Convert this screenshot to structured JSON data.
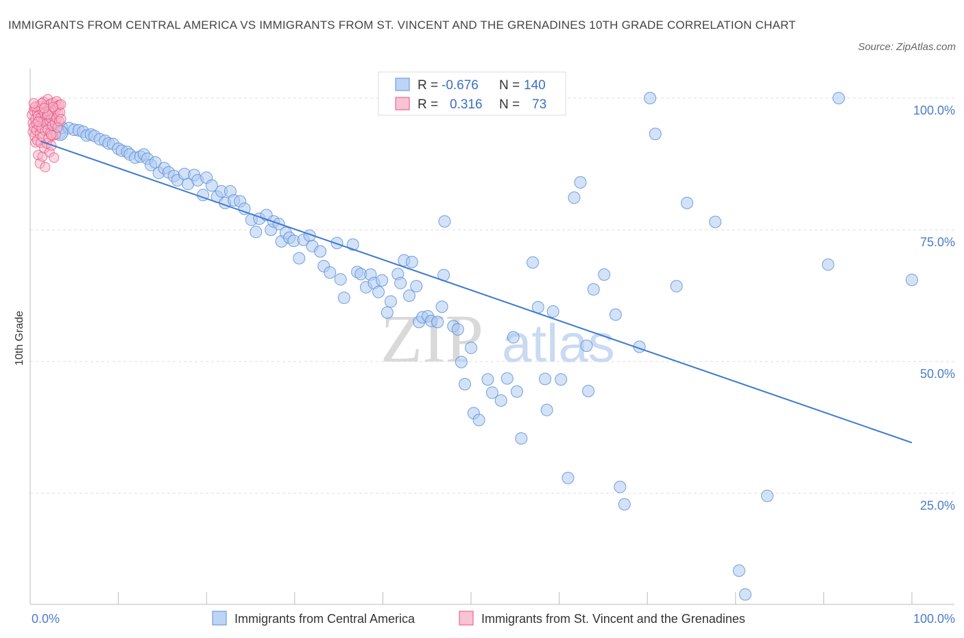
{
  "title": "IMMIGRANTS FROM CENTRAL AMERICA VS IMMIGRANTS FROM ST. VINCENT AND THE GRENADINES 10TH GRADE CORRELATION CHART",
  "source": "Source: ZipAtlas.com",
  "watermark": {
    "zip": "ZIP",
    "atlas": "atlas"
  },
  "colors": {
    "blue": "#5b8fdb",
    "blue_fill": "#aecbf1",
    "pink": "#e8507f",
    "pink_fill": "#f5b4c7",
    "trend_blue": "#3a78d4",
    "grid": "#dddddd"
  },
  "legend_box": {
    "rows": [
      {
        "r_label": "R =",
        "r_value": "-0.676",
        "n_label": "N =",
        "n_value": "140"
      },
      {
        "r_label": "R =",
        "r_value": "0.316",
        "n_label": "N =",
        "n_value": "73"
      }
    ]
  },
  "bottom_legend": [
    {
      "label": "Immigrants from Central America"
    },
    {
      "label": "Immigrants from St. Vincent and the Grenadines"
    }
  ],
  "chart_data": {
    "type": "scatter",
    "title": "IMMIGRANTS FROM CENTRAL AMERICA VS IMMIGRANTS FROM ST. VINCENT AND THE GRENADINES 10TH GRADE CORRELATION CHART",
    "xlabel": "",
    "ylabel": "10th Grade",
    "xlim": [
      0,
      100
    ],
    "ylim": [
      0,
      102
    ],
    "x_tick_labels": [
      {
        "value": 0,
        "label": "0.0%"
      },
      {
        "value": 100,
        "label": "100.0%"
      }
    ],
    "y_tick_labels": [
      {
        "value": 100,
        "label": "100.0%"
      },
      {
        "value": 75,
        "label": "75.0%"
      },
      {
        "value": 50,
        "label": "50.0%"
      },
      {
        "value": 25,
        "label": "25.0%"
      }
    ],
    "series": [
      {
        "name": "Immigrants from Central America",
        "r": -0.676,
        "n": 140,
        "trend": {
          "x": [
            1.2,
            100
          ],
          "y": [
            91.8,
            34.6
          ]
        },
        "points": [
          [
            1.4,
            96.2
          ],
          [
            1.7,
            95.8
          ],
          [
            2.0,
            95.6
          ],
          [
            2.3,
            95.1
          ],
          [
            3.4,
            93.4
          ],
          [
            3.6,
            94.4
          ],
          [
            4.4,
            94.3
          ],
          [
            5.0,
            94.0
          ],
          [
            5.5,
            93.9
          ],
          [
            6.0,
            93.6
          ],
          [
            6.4,
            92.9
          ],
          [
            6.9,
            93.1
          ],
          [
            7.3,
            92.8
          ],
          [
            7.9,
            92.2
          ],
          [
            8.5,
            91.9
          ],
          [
            8.9,
            91.4
          ],
          [
            9.4,
            91.3
          ],
          [
            10.0,
            90.4
          ],
          [
            10.4,
            90.0
          ],
          [
            11.0,
            89.8
          ],
          [
            11.3,
            89.3
          ],
          [
            11.9,
            88.7
          ],
          [
            12.5,
            88.9
          ],
          [
            12.9,
            89.3
          ],
          [
            13.3,
            88.5
          ],
          [
            13.7,
            87.3
          ],
          [
            14.2,
            87.8
          ],
          [
            14.6,
            85.8
          ],
          [
            15.2,
            86.7
          ],
          [
            15.7,
            85.9
          ],
          [
            16.3,
            85.2
          ],
          [
            16.7,
            84.4
          ],
          [
            17.5,
            85.6
          ],
          [
            17.9,
            83.7
          ],
          [
            18.6,
            85.4
          ],
          [
            19.0,
            84.4
          ],
          [
            19.6,
            81.6
          ],
          [
            20.0,
            84.9
          ],
          [
            20.6,
            83.4
          ],
          [
            21.2,
            81.3
          ],
          [
            21.7,
            82.3
          ],
          [
            22.1,
            80.1
          ],
          [
            22.7,
            82.3
          ],
          [
            23.1,
            80.6
          ],
          [
            23.8,
            80.4
          ],
          [
            24.3,
            79.0
          ],
          [
            25.1,
            76.9
          ],
          [
            25.6,
            74.6
          ],
          [
            26.0,
            77.1
          ],
          [
            26.8,
            77.8
          ],
          [
            27.3,
            75.0
          ],
          [
            27.6,
            76.6
          ],
          [
            28.2,
            76.1
          ],
          [
            28.5,
            72.8
          ],
          [
            29.0,
            74.4
          ],
          [
            29.4,
            73.5
          ],
          [
            29.9,
            72.9
          ],
          [
            30.5,
            69.6
          ],
          [
            31.0,
            73.1
          ],
          [
            31.7,
            73.9
          ],
          [
            32.0,
            71.9
          ],
          [
            32.9,
            70.9
          ],
          [
            33.3,
            68.1
          ],
          [
            34.0,
            66.9
          ],
          [
            34.8,
            72.5
          ],
          [
            35.2,
            65.6
          ],
          [
            35.6,
            62.1
          ],
          [
            36.6,
            72.2
          ],
          [
            37.1,
            67.0
          ],
          [
            37.5,
            66.6
          ],
          [
            38.1,
            64.1
          ],
          [
            38.6,
            66.5
          ],
          [
            39.0,
            64.9
          ],
          [
            39.5,
            63.2
          ],
          [
            39.9,
            65.4
          ],
          [
            40.5,
            59.3
          ],
          [
            40.9,
            61.4
          ],
          [
            41.7,
            66.6
          ],
          [
            42.0,
            64.9
          ],
          [
            42.4,
            69.2
          ],
          [
            43.0,
            62.5
          ],
          [
            43.3,
            68.9
          ],
          [
            43.8,
            64.3
          ],
          [
            44.1,
            57.5
          ],
          [
            44.5,
            58.4
          ],
          [
            45.1,
            58.6
          ],
          [
            45.5,
            57.7
          ],
          [
            46.2,
            57.5
          ],
          [
            46.7,
            60.4
          ],
          [
            46.9,
            66.4
          ],
          [
            47.0,
            76.6
          ],
          [
            48.0,
            56.7
          ],
          [
            48.5,
            56.1
          ],
          [
            48.9,
            49.9
          ],
          [
            49.3,
            45.7
          ],
          [
            50.0,
            52.6
          ],
          [
            50.3,
            40.2
          ],
          [
            50.9,
            38.9
          ],
          [
            51.9,
            46.6
          ],
          [
            52.4,
            44.1
          ],
          [
            53.4,
            42.6
          ],
          [
            54.1,
            46.8
          ],
          [
            54.8,
            54.6
          ],
          [
            55.2,
            44.3
          ],
          [
            55.7,
            35.4
          ],
          [
            57.0,
            68.8
          ],
          [
            57.6,
            60.3
          ],
          [
            58.4,
            46.7
          ],
          [
            58.6,
            40.8
          ],
          [
            59.3,
            59.5
          ],
          [
            60.2,
            46.6
          ],
          [
            61.0,
            27.9
          ],
          [
            61.7,
            81.1
          ],
          [
            62.4,
            84.0
          ],
          [
            63.1,
            53.0
          ],
          [
            63.3,
            44.4
          ],
          [
            63.9,
            63.7
          ],
          [
            65.1,
            66.5
          ],
          [
            66.4,
            58.9
          ],
          [
            66.9,
            26.2
          ],
          [
            67.4,
            22.9
          ],
          [
            69.1,
            52.8
          ],
          [
            70.3,
            100.0
          ],
          [
            70.9,
            93.2
          ],
          [
            73.3,
            64.3
          ],
          [
            74.5,
            80.1
          ],
          [
            77.7,
            76.5
          ],
          [
            80.4,
            10.3
          ],
          [
            81.1,
            5.8
          ],
          [
            83.6,
            24.5
          ],
          [
            90.5,
            68.4
          ],
          [
            91.7,
            100.0
          ],
          [
            100.0,
            65.5
          ]
        ]
      },
      {
        "name": "Immigrants from St. Vincent and the Grenadines",
        "r": 0.316,
        "n": 73,
        "points": [
          [
            0.2,
            96.8
          ],
          [
            0.3,
            95.3
          ],
          [
            0.3,
            93.6
          ],
          [
            0.4,
            97.6
          ],
          [
            0.4,
            94.5
          ],
          [
            0.5,
            92.8
          ],
          [
            0.5,
            98.2
          ],
          [
            0.6,
            96.0
          ],
          [
            0.6,
            91.6
          ],
          [
            0.7,
            95.1
          ],
          [
            0.7,
            93.9
          ],
          [
            0.8,
            97.2
          ],
          [
            0.8,
            92.0
          ],
          [
            0.9,
            96.6
          ],
          [
            0.9,
            89.2
          ],
          [
            1.0,
            94.7
          ],
          [
            1.0,
            98.5
          ],
          [
            1.1,
            93.2
          ],
          [
            1.1,
            87.6
          ],
          [
            1.2,
            96.3
          ],
          [
            1.2,
            91.5
          ],
          [
            1.3,
            97.8
          ],
          [
            1.3,
            94.3
          ],
          [
            1.4,
            88.9
          ],
          [
            1.4,
            92.7
          ],
          [
            1.5,
            99.3
          ],
          [
            1.5,
            95.8
          ],
          [
            1.6,
            90.5
          ],
          [
            1.6,
            97.1
          ],
          [
            1.7,
            93.8
          ],
          [
            1.7,
            86.9
          ],
          [
            1.8,
            98.6
          ],
          [
            1.8,
            95.1
          ],
          [
            1.9,
            91.4
          ],
          [
            1.9,
            96.7
          ],
          [
            2.0,
            94.0
          ],
          [
            2.0,
            99.8
          ],
          [
            2.1,
            92.4
          ],
          [
            2.1,
            97.5
          ],
          [
            2.2,
            89.7
          ],
          [
            2.2,
            95.7
          ],
          [
            2.3,
            93.4
          ],
          [
            2.3,
            98.9
          ],
          [
            2.4,
            96.1
          ],
          [
            2.4,
            91.0
          ],
          [
            2.5,
            97.4
          ],
          [
            2.5,
            94.8
          ],
          [
            2.6,
            99.1
          ],
          [
            2.6,
            92.9
          ],
          [
            2.7,
            96.5
          ],
          [
            2.7,
            88.7
          ],
          [
            2.8,
            98.0
          ],
          [
            2.8,
            95.2
          ],
          [
            2.9,
            93.1
          ],
          [
            2.9,
            97.8
          ],
          [
            3.0,
            96.2
          ],
          [
            3.0,
            99.4
          ],
          [
            3.1,
            94.4
          ],
          [
            3.1,
            98.4
          ],
          [
            3.2,
            97.0
          ],
          [
            3.3,
            95.6
          ],
          [
            3.3,
            98.7
          ],
          [
            3.4,
            97.3
          ],
          [
            3.5,
            98.8
          ],
          [
            3.5,
            96.0
          ],
          [
            0.6,
            98.4
          ],
          [
            1.3,
            99.0
          ],
          [
            2.0,
            96.9
          ],
          [
            2.4,
            93.0
          ],
          [
            0.9,
            95.5
          ],
          [
            1.6,
            98.1
          ],
          [
            2.6,
            98.3
          ],
          [
            0.4,
            99.0
          ]
        ]
      }
    ]
  }
}
